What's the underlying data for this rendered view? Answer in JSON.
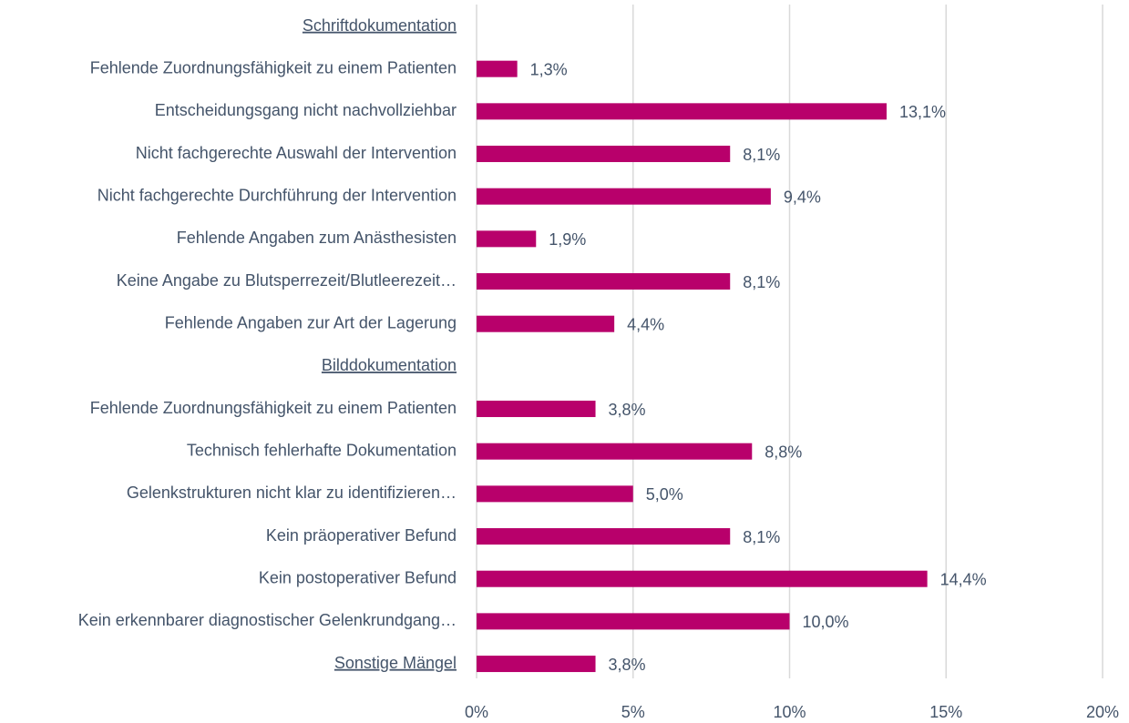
{
  "chart_data": {
    "type": "hbar",
    "categories": [
      "Schriftdokumentation",
      "Fehlende Zuordnungsfähigkeit zu einem Patienten",
      "Entscheidungsgang nicht nachvollziehbar",
      "Nicht fachgerechte Auswahl der Intervention",
      "Nicht fachgerechte Durchführung der Intervention",
      "Fehlende Angaben zum Anästhesisten",
      "Keine Angabe zu Blutsperrezeit/Blutleerezeit…",
      "Fehlende Angaben zur Art der Lagerung",
      "Bilddokumentation",
      "Fehlende Zuordnungsfähigkeit zu einem Patienten",
      "Technisch fehlerhafte Dokumentation",
      "Gelenkstrukturen nicht klar zu identifizieren…",
      "Kein präoperativer Befund",
      "Kein postoperativer Befund",
      "Kein erkennbarer diagnostischer Gelenkrundgang…",
      "Sonstige Mängel"
    ],
    "values": [
      null,
      1.3,
      13.1,
      8.1,
      9.4,
      1.9,
      8.1,
      4.4,
      null,
      3.8,
      8.8,
      5.0,
      8.1,
      14.4,
      10.0,
      3.8
    ],
    "value_labels": [
      null,
      "1,3%",
      "13,1%",
      "8,1%",
      "9,4%",
      "1,9%",
      "8,1%",
      "4,4%",
      null,
      "3,8%",
      "8,8%",
      "5,0%",
      "8,1%",
      "14,4%",
      "10,0%",
      "3,8%"
    ],
    "underlined_categories": [
      0,
      8,
      15
    ],
    "color": "#b8006b",
    "xlim": [
      0,
      20
    ],
    "xticks": [
      {
        "value": 0,
        "label": "0%"
      },
      {
        "value": 5,
        "label": "5%"
      },
      {
        "value": 10,
        "label": "10%"
      },
      {
        "value": 15,
        "label": "15%"
      },
      {
        "value": 20,
        "label": "20%"
      }
    ],
    "grid": true
  }
}
